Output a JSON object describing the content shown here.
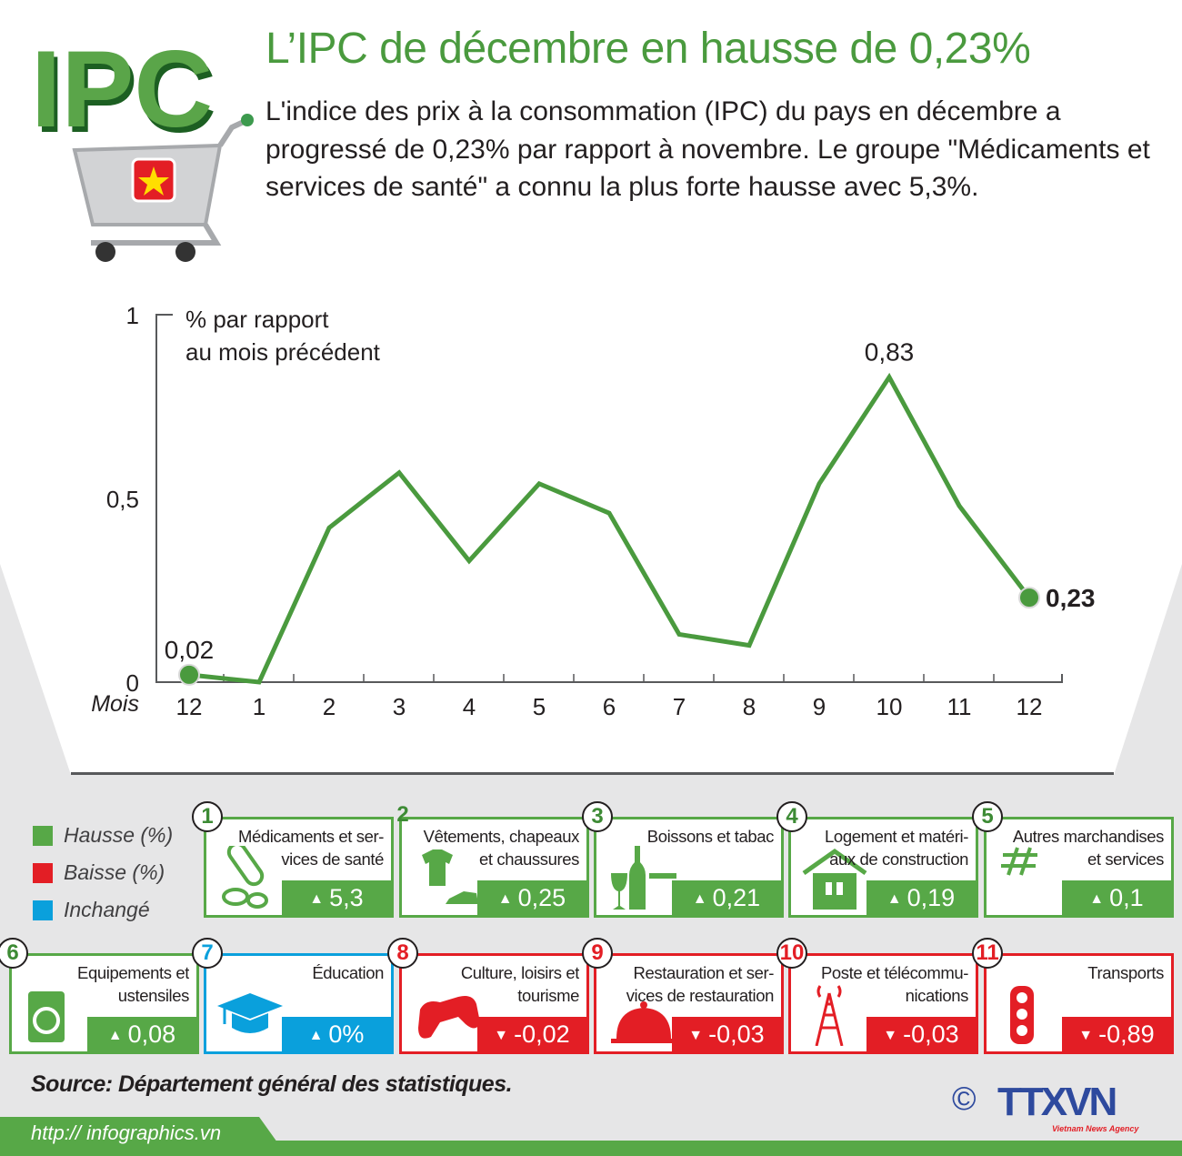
{
  "header": {
    "logo_text": "IPC",
    "title": "L’IPC de décembre en hausse de 0,23%",
    "intro": "L'indice des prix à la consommation (IPC) du pays en décembre a progressé de 0,23% par rapport à novembre. Le groupe \"Médicaments et services de santé\" a connu la plus forte hausse avec 5,3%."
  },
  "chart_data": {
    "type": "line",
    "ylabel": "% par rapport au mois précédent",
    "ylabel_lines": [
      "% par rapport",
      "au mois précédent"
    ],
    "xlabel": "Mois",
    "categories": [
      "12",
      "1",
      "2",
      "3",
      "4",
      "5",
      "6",
      "7",
      "8",
      "9",
      "10",
      "11",
      "12"
    ],
    "values": [
      0.02,
      0.0,
      0.42,
      0.57,
      0.33,
      0.54,
      0.46,
      0.13,
      0.1,
      0.54,
      0.83,
      0.48,
      0.23
    ],
    "ylim": [
      0,
      1
    ],
    "yticks": [
      "0",
      "0,5",
      "1"
    ],
    "data_labels": [
      {
        "index": 0,
        "text": "0,02"
      },
      {
        "index": 10,
        "text": "0,83"
      },
      {
        "index": 12,
        "text": "0,23"
      }
    ],
    "line_color": "#4a9a3e",
    "grid": false
  },
  "legend": [
    {
      "label": "Hausse (%)",
      "color": "#57a847"
    },
    {
      "label": "Baisse (%)",
      "color": "#e31e25"
    },
    {
      "label": "Inchangé",
      "color": "#0aa0dc"
    }
  ],
  "groups": [
    {
      "num": "1",
      "label": "Médicaments et ser-vices de santé",
      "value": "5,3",
      "dir": "up",
      "icon": "pills-icon"
    },
    {
      "num": "2",
      "label": "Vêtements, chapeaux et chaussures",
      "value": "0,25",
      "dir": "up",
      "icon": "clothing-icon"
    },
    {
      "num": "3",
      "label": "Boissons et tabac",
      "value": "0,21",
      "dir": "up",
      "icon": "bottle-cigarette-icon"
    },
    {
      "num": "4",
      "label": "Logement et matéri-aux de construction",
      "value": "0,19",
      "dir": "up",
      "icon": "house-icon"
    },
    {
      "num": "5",
      "label": "Autres marchandises et services",
      "value": "0,1",
      "dir": "up",
      "icon": "hash-icon"
    },
    {
      "num": "6",
      "label": "Equipements et ustensiles",
      "value": "0,08",
      "dir": "up",
      "icon": "washing-machine-icon"
    },
    {
      "num": "7",
      "label": "Éducation",
      "value": "0%",
      "dir": "up",
      "icon": "graduation-cap-icon"
    },
    {
      "num": "8",
      "label": "Culture, loisirs et tourisme",
      "value": "-0,02",
      "dir": "down",
      "icon": "gamepad-icon"
    },
    {
      "num": "9",
      "label": "Restauration et ser-vices de restauration",
      "value": "-0,03",
      "dir": "down",
      "icon": "food-cloche-icon"
    },
    {
      "num": "10",
      "label": "Poste et télécommu-nications",
      "value": "-0,03",
      "dir": "down",
      "icon": "antenna-tower-icon"
    },
    {
      "num": "11",
      "label": "Transports",
      "value": "-0,89",
      "dir": "down",
      "icon": "traffic-light-icon"
    }
  ],
  "arrows": {
    "up": "▲",
    "down": "▼"
  },
  "footer": {
    "source": "Source: Département général des statistiques.",
    "url": "http:// infographics.vn",
    "agency_logo": "TTXVN",
    "agency_sub": "Vietnam News Agency",
    "copyright": "©"
  }
}
